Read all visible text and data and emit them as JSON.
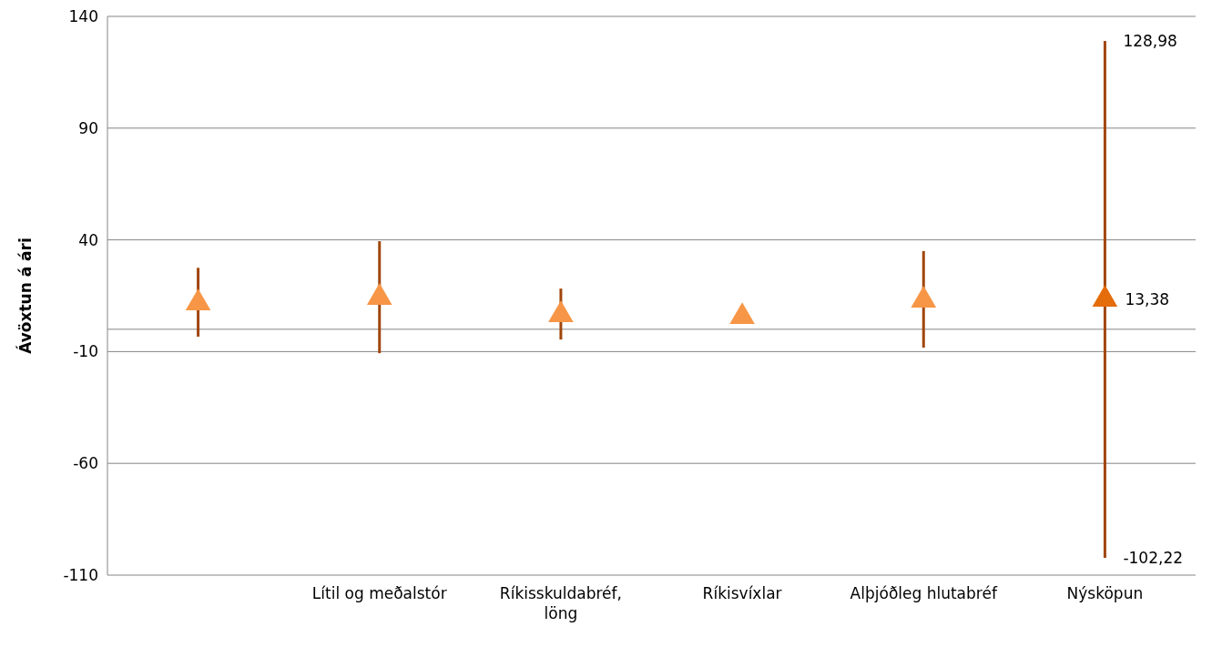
{
  "chart_data": {
    "type": "scatter",
    "ylabel": "Ávöxtun á ári",
    "categories": [
      null,
      "Lítil og meðalstór",
      "Ríkisskuldabréf, löng",
      "Ríkisvíxlar",
      "Alþjóðleg hlutabréf",
      "Nýsköpun"
    ],
    "series": [
      {
        "colors": [
          "#f79646",
          "#f79646",
          "#f79646",
          "#f79646",
          "#f79646",
          "#e46c0a"
        ],
        "values": [
          11.7,
          14.2,
          6.4,
          5.6,
          13,
          13.38
        ],
        "errors": [
          [
            -3.3,
            27.5
          ],
          [
            -10.7,
            39.4
          ],
          [
            -4.6,
            18.2
          ],
          null,
          [
            -8.2,
            35
          ],
          [
            -102.22,
            128.98
          ]
        ],
        "value_labels": [
          null,
          null,
          null,
          null,
          null,
          "13,38"
        ]
      }
    ],
    "annotations": [
      {
        "text": "128,98",
        "x": "Nýsköpun",
        "y": 128.98
      },
      {
        "text": "-102,22",
        "x": "Nýsköpun",
        "y": -102.22
      }
    ],
    "ylim": [
      -110,
      140
    ],
    "yticks": [
      -110,
      -60,
      -10,
      40,
      90,
      140
    ],
    "grid": "y",
    "marker": "triangle"
  }
}
